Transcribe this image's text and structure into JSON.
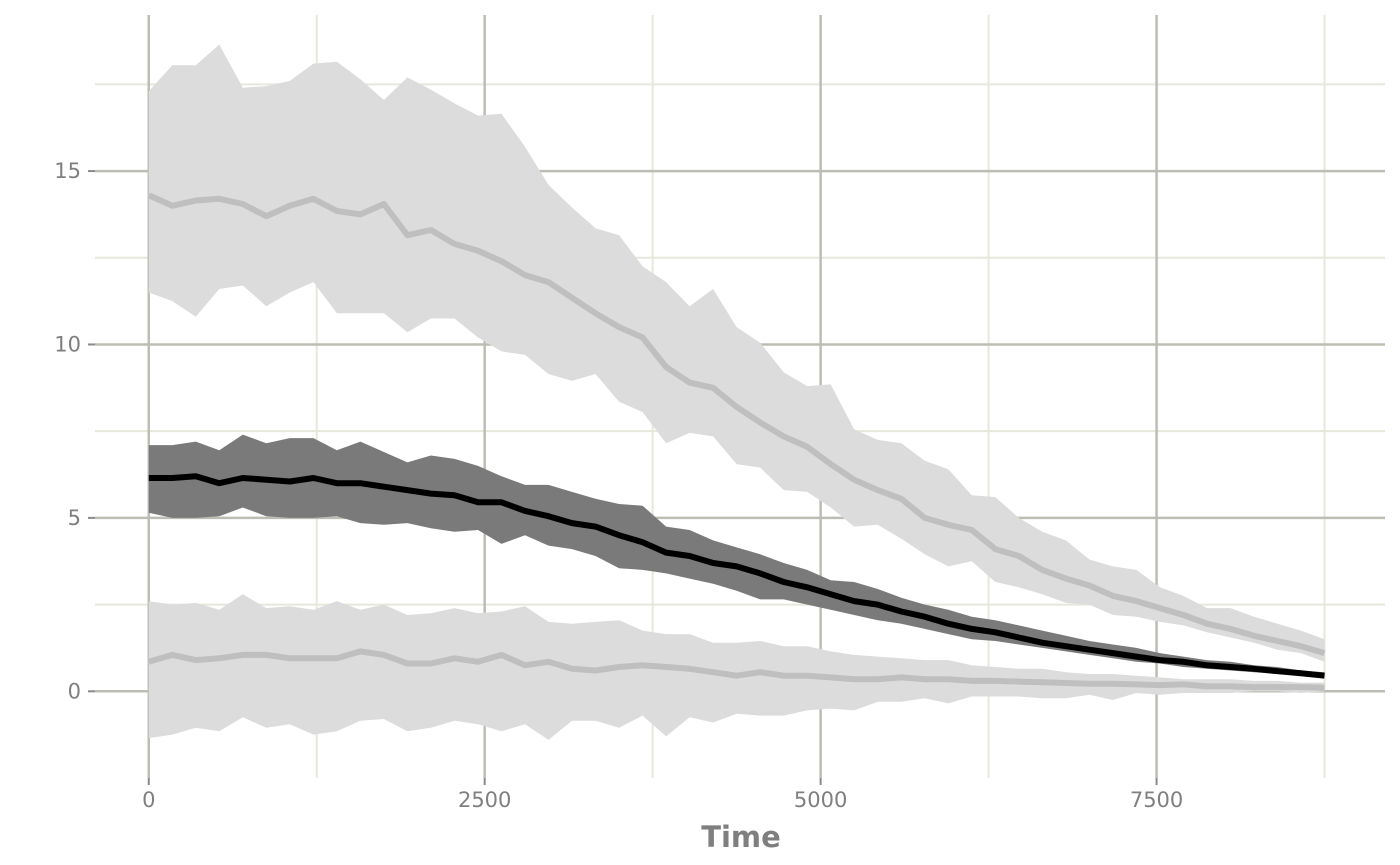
{
  "chart_data": {
    "type": "line",
    "title": "",
    "xlabel": "Time",
    "ylabel": "",
    "xlim": [
      -400,
      9200
    ],
    "ylim": [
      -2.5,
      19.5
    ],
    "x_ticks": [
      0,
      2500,
      5000,
      7500
    ],
    "x_tick_labels": [
      "0",
      "2500",
      "5000",
      "7500"
    ],
    "x_minor": [
      1250,
      3750,
      6250,
      8750
    ],
    "y_ticks": [
      0,
      5,
      10,
      15
    ],
    "y_tick_labels": [
      "0",
      "5",
      "10",
      "15"
    ],
    "y_minor": [
      2.5,
      7.5,
      12.5,
      17.5
    ],
    "grid": true,
    "x": [
      0,
      175,
      350,
      525,
      700,
      875,
      1050,
      1225,
      1400,
      1575,
      1750,
      1925,
      2100,
      2275,
      2450,
      2625,
      2800,
      2975,
      3150,
      3325,
      3500,
      3675,
      3850,
      4025,
      4200,
      4375,
      4550,
      4725,
      4900,
      5075,
      5250,
      5425,
      5600,
      5775,
      5950,
      6125,
      6300,
      6475,
      6650,
      6825,
      7000,
      7175,
      7350,
      7525,
      7700,
      7875,
      8050,
      8225,
      8400,
      8575,
      8750
    ],
    "series": [
      {
        "color": "#bfbfbf",
        "band_color": "#dcdcdc",
        "line_width": 6,
        "values": [
          14.3,
          14.0,
          14.15,
          14.2,
          14.05,
          13.7,
          14.0,
          14.2,
          13.85,
          13.75,
          14.05,
          13.15,
          13.3,
          12.9,
          12.7,
          12.4,
          12.0,
          11.8,
          11.35,
          10.9,
          10.5,
          10.2,
          9.35,
          8.9,
          8.75,
          8.2,
          7.75,
          7.35,
          7.05,
          6.55,
          6.1,
          5.8,
          5.55,
          5.0,
          4.8,
          4.65,
          4.1,
          3.9,
          3.5,
          3.25,
          3.05,
          2.75,
          2.6,
          2.4,
          2.2,
          1.95,
          1.8,
          1.6,
          1.45,
          1.3,
          1.1
        ],
        "lower": [
          11.5,
          11.25,
          10.8,
          11.6,
          11.7,
          11.1,
          11.5,
          11.8,
          10.9,
          10.9,
          10.9,
          10.35,
          10.75,
          10.75,
          10.2,
          9.8,
          9.7,
          9.15,
          8.95,
          9.15,
          8.35,
          8.05,
          7.15,
          7.45,
          7.35,
          6.55,
          6.45,
          5.8,
          5.75,
          5.3,
          4.75,
          4.8,
          4.4,
          3.95,
          3.6,
          3.75,
          3.15,
          3.0,
          2.8,
          2.55,
          2.5,
          2.2,
          2.15,
          2.0,
          1.9,
          1.7,
          1.55,
          1.4,
          1.2,
          1.1,
          0.85
        ],
        "upper": [
          17.3,
          18.05,
          18.05,
          18.65,
          17.4,
          17.45,
          17.6,
          18.1,
          18.15,
          17.65,
          17.05,
          17.7,
          17.35,
          16.95,
          16.6,
          16.65,
          15.7,
          14.6,
          13.95,
          13.35,
          13.15,
          12.25,
          11.8,
          11.1,
          11.6,
          10.5,
          10.05,
          9.2,
          8.8,
          8.85,
          7.55,
          7.25,
          7.15,
          6.65,
          6.4,
          5.65,
          5.6,
          5.0,
          4.6,
          4.35,
          3.8,
          3.6,
          3.5,
          3.0,
          2.75,
          2.4,
          2.4,
          2.15,
          1.95,
          1.75,
          1.5
        ]
      },
      {
        "color": "#bfbfbf",
        "band_color": "#dcdcdc",
        "line_width": 6,
        "values": [
          0.85,
          1.05,
          0.9,
          0.95,
          1.05,
          1.05,
          0.95,
          0.95,
          0.95,
          1.15,
          1.05,
          0.8,
          0.8,
          0.95,
          0.85,
          1.05,
          0.75,
          0.85,
          0.65,
          0.6,
          0.7,
          0.75,
          0.7,
          0.65,
          0.55,
          0.45,
          0.55,
          0.45,
          0.45,
          0.4,
          0.35,
          0.35,
          0.4,
          0.35,
          0.35,
          0.3,
          0.3,
          0.28,
          0.26,
          0.24,
          0.22,
          0.22,
          0.2,
          0.18,
          0.2,
          0.14,
          0.14,
          0.12,
          0.12,
          0.12,
          0.1
        ],
        "lower": [
          -1.35,
          -1.25,
          -1.05,
          -1.15,
          -0.75,
          -1.05,
          -0.95,
          -1.25,
          -1.15,
          -0.85,
          -0.8,
          -1.15,
          -1.05,
          -0.85,
          -0.95,
          -1.15,
          -0.95,
          -1.4,
          -0.85,
          -0.85,
          -1.05,
          -0.7,
          -1.3,
          -0.75,
          -0.9,
          -0.65,
          -0.7,
          -0.7,
          -0.55,
          -0.5,
          -0.55,
          -0.3,
          -0.3,
          -0.2,
          -0.35,
          -0.15,
          -0.15,
          -0.15,
          -0.2,
          -0.2,
          -0.1,
          -0.25,
          -0.05,
          -0.1,
          -0.05,
          -0.05,
          -0.05,
          0.0,
          0.0,
          -0.05,
          0.0
        ],
        "upper": [
          2.6,
          2.5,
          2.55,
          2.35,
          2.8,
          2.4,
          2.45,
          2.35,
          2.6,
          2.35,
          2.5,
          2.2,
          2.25,
          2.4,
          2.25,
          2.3,
          2.45,
          2.0,
          1.95,
          2.0,
          2.05,
          1.75,
          1.65,
          1.65,
          1.4,
          1.4,
          1.45,
          1.3,
          1.3,
          1.15,
          1.05,
          1.0,
          0.95,
          0.9,
          0.9,
          0.75,
          0.7,
          0.65,
          0.65,
          0.55,
          0.5,
          0.5,
          0.45,
          0.4,
          0.35,
          0.35,
          0.35,
          0.3,
          0.3,
          0.25,
          0.25
        ]
      },
      {
        "color": "#000000",
        "band_color": "#7a7a7a",
        "line_width": 6,
        "values": [
          6.15,
          6.15,
          6.2,
          6.0,
          6.15,
          6.1,
          6.05,
          6.15,
          6.0,
          6.0,
          5.9,
          5.8,
          5.7,
          5.65,
          5.45,
          5.45,
          5.2,
          5.05,
          4.85,
          4.75,
          4.5,
          4.3,
          4.0,
          3.9,
          3.7,
          3.6,
          3.4,
          3.15,
          3.0,
          2.8,
          2.6,
          2.5,
          2.3,
          2.15,
          1.95,
          1.8,
          1.7,
          1.55,
          1.4,
          1.3,
          1.2,
          1.1,
          1.0,
          0.9,
          0.85,
          0.75,
          0.7,
          0.65,
          0.58,
          0.52,
          0.45
        ],
        "lower": [
          5.15,
          5.0,
          5.0,
          5.05,
          5.3,
          5.05,
          5.0,
          5.0,
          5.05,
          4.85,
          4.8,
          4.85,
          4.7,
          4.6,
          4.65,
          4.25,
          4.5,
          4.2,
          4.1,
          3.9,
          3.55,
          3.5,
          3.4,
          3.25,
          3.1,
          2.9,
          2.65,
          2.65,
          2.5,
          2.35,
          2.2,
          2.05,
          1.95,
          1.8,
          1.65,
          1.5,
          1.45,
          1.35,
          1.25,
          1.15,
          1.05,
          0.95,
          0.85,
          0.8,
          0.7,
          0.65,
          0.6,
          0.55,
          0.5,
          0.45,
          0.4
        ],
        "upper": [
          7.1,
          7.1,
          7.2,
          6.95,
          7.4,
          7.15,
          7.3,
          7.3,
          6.95,
          7.2,
          6.9,
          6.6,
          6.8,
          6.7,
          6.5,
          6.2,
          5.95,
          5.95,
          5.75,
          5.55,
          5.4,
          5.35,
          4.75,
          4.65,
          4.35,
          4.15,
          3.95,
          3.7,
          3.5,
          3.2,
          3.15,
          2.95,
          2.7,
          2.5,
          2.35,
          2.15,
          2.05,
          1.9,
          1.75,
          1.6,
          1.45,
          1.35,
          1.25,
          1.1,
          1.0,
          0.9,
          0.85,
          0.75,
          0.7,
          0.6,
          0.55
        ]
      }
    ]
  }
}
